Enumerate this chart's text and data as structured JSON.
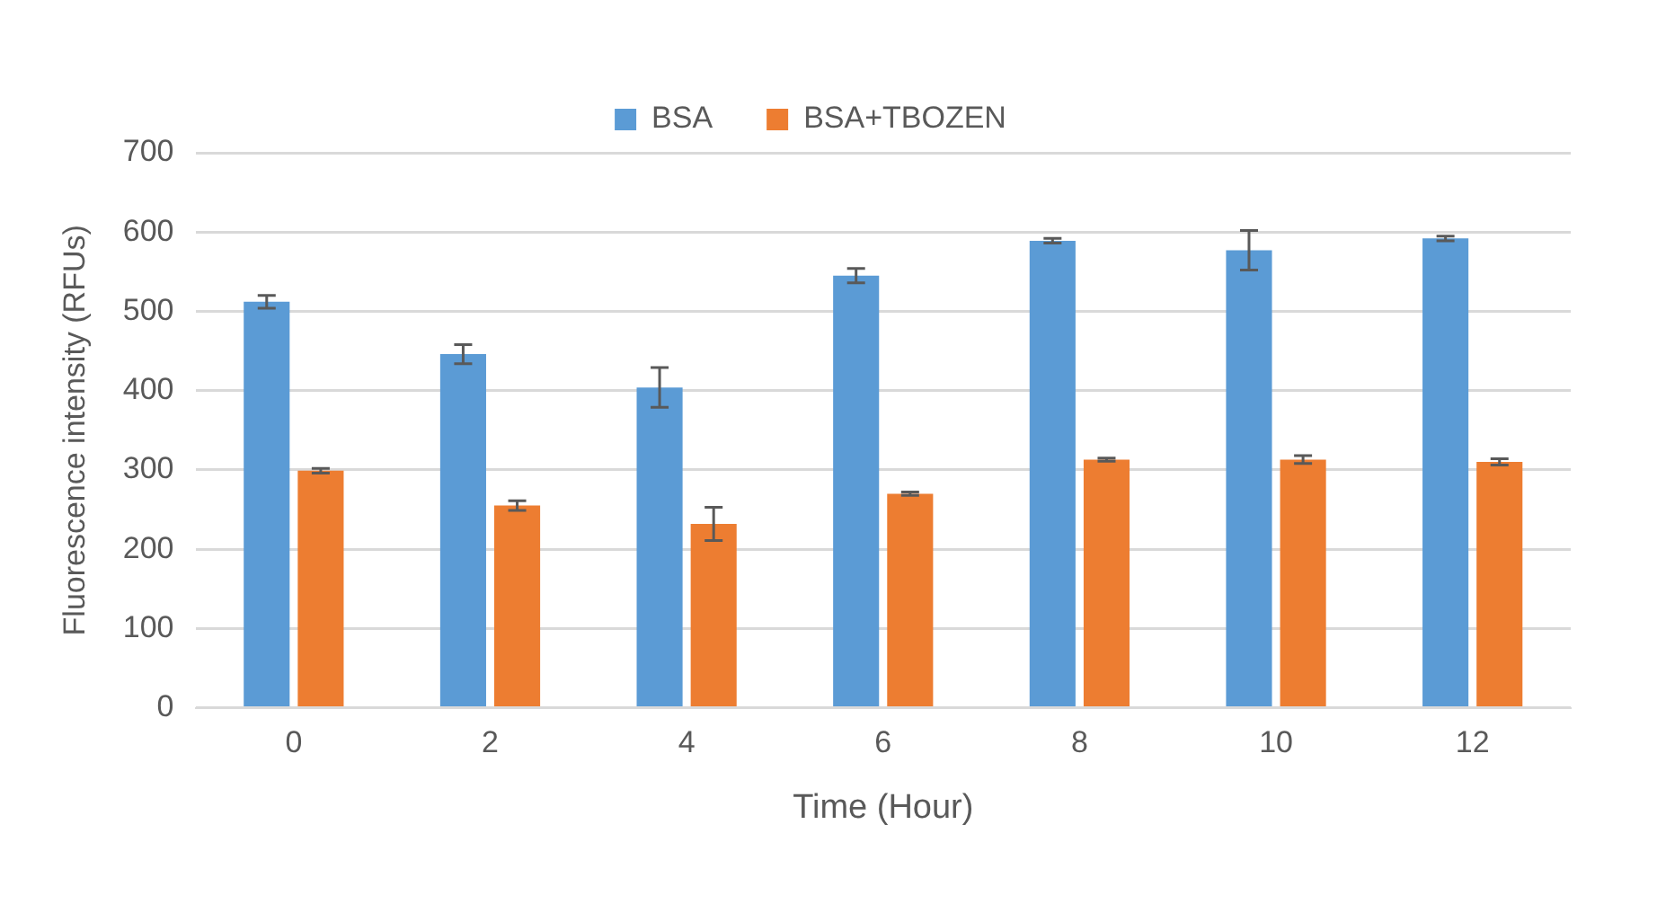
{
  "chart_data": {
    "type": "bar",
    "xlabel": "Time (Hour)",
    "ylabel": "Fluorescence intensity (RFUs)",
    "categories": [
      "0",
      "2",
      "4",
      "6",
      "8",
      "10",
      "12"
    ],
    "series": [
      {
        "name": "BSA",
        "color": "#5b9bd5",
        "values": [
          512,
          446,
          404,
          545,
          589,
          577,
          592
        ],
        "errors": [
          8,
          12,
          25,
          9,
          3,
          25,
          3
        ]
      },
      {
        "name": "BSA+TBOZEN",
        "color": "#ed7d31",
        "values": [
          299,
          255,
          232,
          270,
          313,
          313,
          310
        ],
        "errors": [
          3,
          6,
          21,
          2,
          2,
          5,
          4
        ]
      }
    ],
    "ylim": [
      0,
      700
    ],
    "yticks": [
      0,
      100,
      200,
      300,
      400,
      500,
      600,
      700
    ],
    "grid": "y",
    "legend": "top"
  }
}
